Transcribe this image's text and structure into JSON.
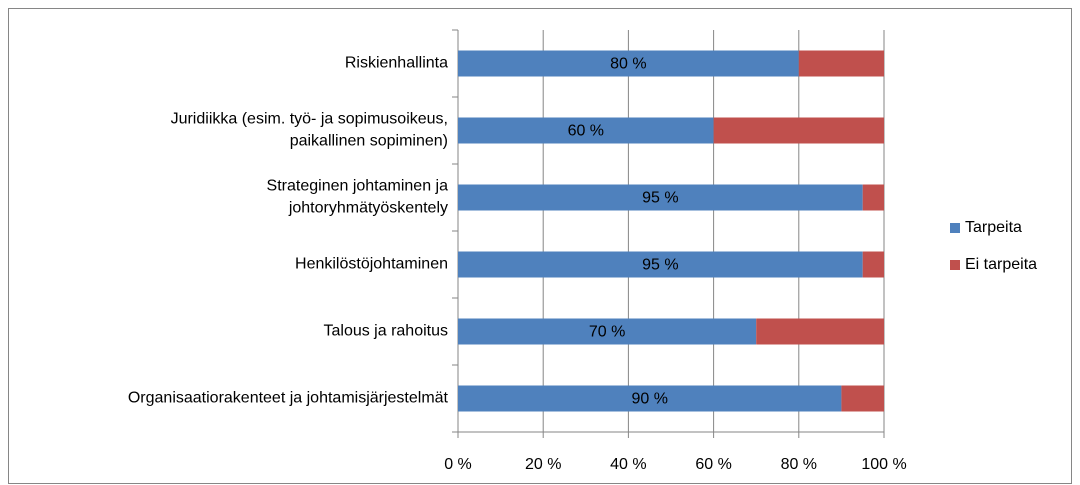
{
  "chart_data": {
    "type": "stacked-barh",
    "categories": [
      "Riskienhallinta",
      "Juridiikka (esim. työ- ja sopimusoikeus,\npaikallinen sopiminen)",
      "Strateginen johtaminen ja\njohtoryhmätyöskentely",
      "Henkilöstöjohtaminen",
      "Talous ja rahoitus",
      "Organisaatiorakenteet ja johtamisjärjestelmät"
    ],
    "series": [
      {
        "name": "Tarpeita",
        "color": "#4f81bd",
        "values": [
          80,
          60,
          95,
          95,
          70,
          90
        ],
        "value_labels": [
          "80 %",
          "60 %",
          "95 %",
          "95 %",
          "70 %",
          "90 %"
        ]
      },
      {
        "name": "Ei tarpeita",
        "color": "#c0504d",
        "values": [
          20,
          40,
          5,
          5,
          30,
          10
        ]
      }
    ],
    "xlim": [
      0,
      100
    ],
    "xticks": [
      {
        "value": 0,
        "label": "0 %"
      },
      {
        "value": 20,
        "label": "20 %"
      },
      {
        "value": 40,
        "label": "40 %"
      },
      {
        "value": 60,
        "label": "60 %"
      },
      {
        "value": 80,
        "label": "80 %"
      },
      {
        "value": 100,
        "label": "100 %"
      }
    ],
    "grid": true,
    "legend": "right"
  }
}
